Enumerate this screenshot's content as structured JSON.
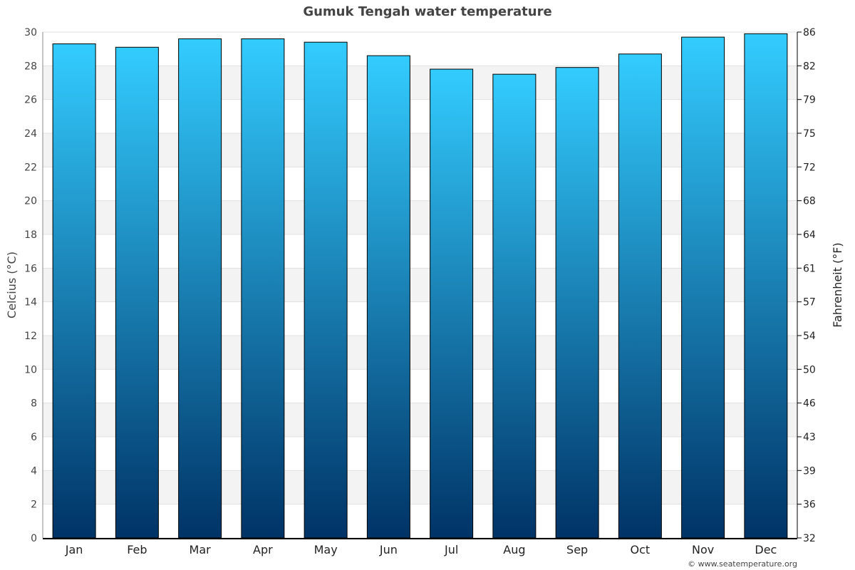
{
  "chart_data": {
    "type": "bar",
    "title": "Gumuk Tengah water temperature",
    "categories": [
      "Jan",
      "Feb",
      "Mar",
      "Apr",
      "May",
      "Jun",
      "Jul",
      "Aug",
      "Sep",
      "Oct",
      "Nov",
      "Dec"
    ],
    "values": [
      29.3,
      29.1,
      29.6,
      29.6,
      29.4,
      28.6,
      27.8,
      27.5,
      27.9,
      28.7,
      29.7,
      29.9
    ],
    "ylabel": "Celcius (°C)",
    "ylabel_right": "Fahrenheit (°F)",
    "ylim": [
      0,
      30
    ],
    "yticks": [
      0,
      2,
      4,
      6,
      8,
      10,
      12,
      14,
      16,
      18,
      20,
      22,
      24,
      26,
      28,
      30
    ],
    "yticks_right": [
      32,
      36,
      39,
      43,
      46,
      50,
      54,
      57,
      61,
      64,
      68,
      72,
      75,
      79,
      82,
      86
    ],
    "grid": true,
    "colors": {
      "bar_top": "#33ccff",
      "bar_bottom": "#003366",
      "band": "#f3f3f3"
    }
  },
  "credit": "© www.seatemperature.org"
}
